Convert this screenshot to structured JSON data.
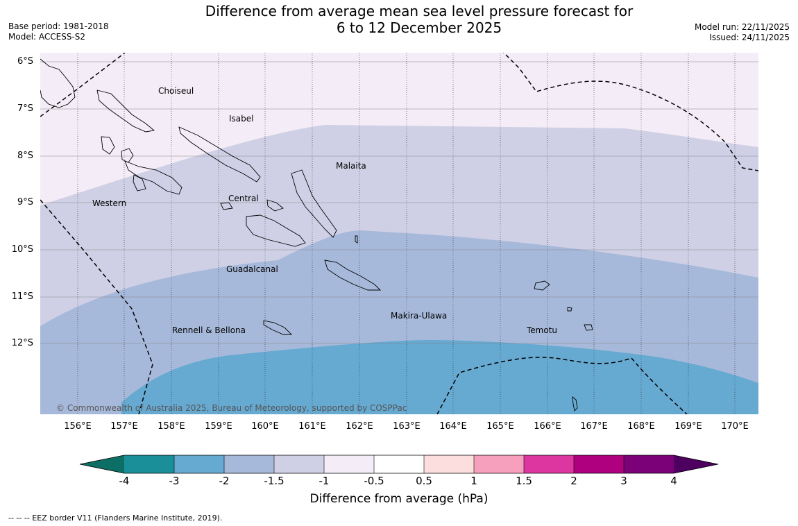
{
  "title": {
    "line1": "Difference from average mean sea level pressure forecast for",
    "line2": "6 to 12 December 2025"
  },
  "meta_left": {
    "base_period": "Base period: 1981-2018",
    "model": "Model: ACCESS-S2"
  },
  "meta_right": {
    "model_run": "Model run: 22/11/2025",
    "issued": "Issued: 24/11/2025"
  },
  "map": {
    "latitude_labels": [
      "6°S",
      "7°S",
      "8°S",
      "9°S",
      "10°S",
      "11°S",
      "12°S"
    ],
    "longitude_labels": [
      "156°E",
      "157°E",
      "158°E",
      "159°E",
      "160°E",
      "161°E",
      "162°E",
      "163°E",
      "164°E",
      "165°E",
      "166°E",
      "167°E",
      "168°E",
      "169°E",
      "170°E"
    ],
    "regions": [
      "Choiseul",
      "Isabel",
      "Malaita",
      "Western",
      "Central",
      "Guadalcanal",
      "Makira-Ulawa",
      "Rennell & Bellona",
      "Temotu"
    ],
    "copyright": "© Commonwealth of Australia 2025, Bureau of Meteorology, supported by COSPPac",
    "fill_colors": {
      "band_-1_-0.5": "#f4ecf6",
      "band_-1.5_-1": "#cfd0e5",
      "band_-2_-1.5": "#a7b9da",
      "band_-3_-2": "#66a9d1"
    }
  },
  "colorbar": {
    "title": "Difference from average (hPa)",
    "tick_labels": [
      "-4",
      "-3",
      "-2",
      "-1.5",
      "-1",
      "-0.5",
      "0.5",
      "1",
      "1.5",
      "2",
      "3",
      "4"
    ],
    "colors": [
      "#1a8f9a",
      "#66a9d1",
      "#a7b9da",
      "#cfd0e5",
      "#f4ecf6",
      "#ffffff",
      "#fddede",
      "#f7a0bd",
      "#de36a0",
      "#ae007f",
      "#7a0177"
    ],
    "extend_low_color": "#0d6e66",
    "extend_high_color": "#4d0060"
  },
  "footer": "--  --  -- EEZ border V11 (Flanders Marine Institute, 2019)."
}
